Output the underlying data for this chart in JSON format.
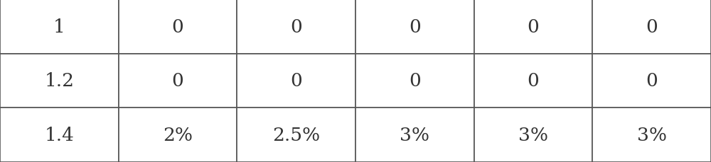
{
  "rows": [
    [
      "1",
      "0",
      "0",
      "0",
      "0",
      "0"
    ],
    [
      "1.2",
      "0",
      "0",
      "0",
      "0",
      "0"
    ],
    [
      "1.4",
      "2%",
      "2.5%",
      "3%",
      "3%",
      "3%"
    ]
  ],
  "n_rows": 3,
  "n_cols": 6,
  "col_widths": [
    1,
    1,
    1,
    1,
    1,
    1
  ],
  "background_color": "#ffffff",
  "border_color": "#555555",
  "text_color": "#333333",
  "font_size": 19,
  "font_family": "DejaVu Serif",
  "border_linewidth": 1.2
}
